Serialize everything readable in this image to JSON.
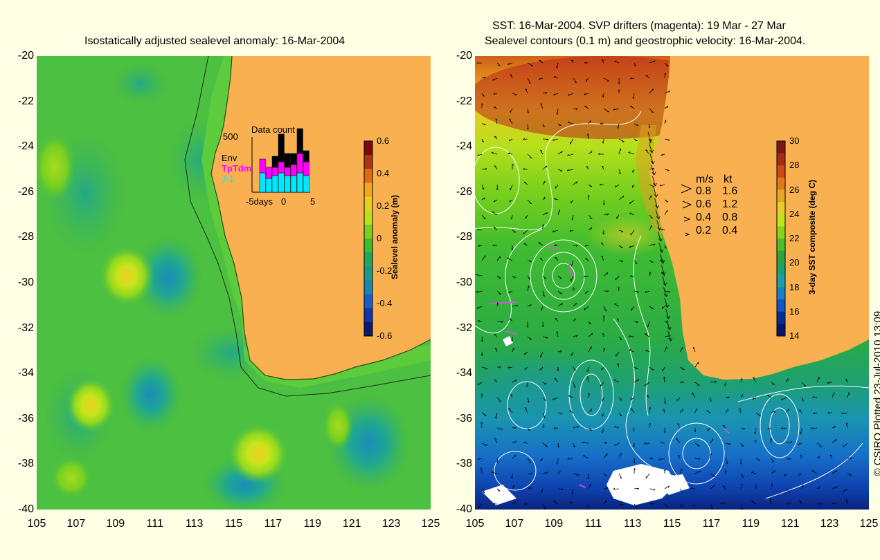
{
  "left": {
    "title": "Isostatically adjusted sealevel anomaly: 16-Mar-2004",
    "colorbar": {
      "label": "Sealevel anomaly (m)",
      "ticks": [
        "0.6",
        "0.4",
        "0.2",
        "0",
        "-0.2",
        "-0.4",
        "-0.6"
      ],
      "colors": [
        "#7b0a0a",
        "#b43214",
        "#e06a14",
        "#f6a51e",
        "#e8cf1e",
        "#b8e01c",
        "#78d01c",
        "#3cbc2c",
        "#20a858",
        "#1a9a86",
        "#1a84b0",
        "#165ec8",
        "#1236aa",
        "#0a1a6e"
      ]
    },
    "inset": {
      "title": "Data count",
      "ymax": "500",
      "legend": [
        {
          "name": "Env",
          "color": "#000000"
        },
        {
          "name": "TpTdm",
          "color": "#ff00ff"
        },
        {
          "name": "J-1",
          "color": "#00e8ff"
        }
      ],
      "xticks": [
        "-5days",
        "0",
        "5"
      ],
      "bars": [
        {
          "day": -5,
          "env": 0,
          "tp": 0,
          "j1": 0
        },
        {
          "day": -4,
          "env": 0,
          "tp": 0.25,
          "j1": 0.35
        },
        {
          "day": -3,
          "env": 0,
          "tp": 0.2,
          "j1": 0.25
        },
        {
          "day": -2,
          "env": 0.2,
          "tp": 0.15,
          "j1": 0.3
        },
        {
          "day": -1,
          "env": 0.5,
          "tp": 0.2,
          "j1": 0.35
        },
        {
          "day": 0,
          "env": 0.25,
          "tp": 0.15,
          "j1": 0.3
        },
        {
          "day": 1,
          "env": 0.2,
          "tp": 0.2,
          "j1": 0.3
        },
        {
          "day": 2,
          "env": 0.45,
          "tp": 0.35,
          "j1": 0.35
        },
        {
          "day": 3,
          "env": 0.2,
          "tp": 0.25,
          "j1": 0.3
        }
      ]
    }
  },
  "right": {
    "title1": "SST: 16-Mar-2004. SVP drifters (magenta): 19 Mar - 27 Mar",
    "title2": "Sealevel contours (0.1 m) and geostrophic velocity: 16-Mar-2004.",
    "colorbar": {
      "label": "3-day SST composite (deg C)",
      "ticks": [
        "30",
        "28",
        "26",
        "24",
        "22",
        "20",
        "18",
        "16",
        "14"
      ],
      "colors": [
        "#7a1a16",
        "#a52a18",
        "#cc4a14",
        "#e0781c",
        "#e8a624",
        "#e8cf28",
        "#c4e41c",
        "#88d41c",
        "#4cc02c",
        "#2ca43a",
        "#1ea070",
        "#1aa0a8",
        "#1680c8",
        "#1056c8",
        "#0a2c96",
        "#061664"
      ]
    },
    "speed_legend": {
      "header_ms": "m/s",
      "header_kt": "kt",
      "rows": [
        {
          "ms": "0.8",
          "kt": "1.6"
        },
        {
          "ms": "0.6",
          "kt": "1.2"
        },
        {
          "ms": "0.4",
          "kt": "0.8"
        },
        {
          "ms": "0.2",
          "kt": "0.4"
        }
      ]
    }
  },
  "axes": {
    "lat": [
      "-20",
      "-22",
      "-24",
      "-26",
      "-28",
      "-30",
      "-32",
      "-34",
      "-36",
      "-38",
      "-40"
    ],
    "lon": [
      "105",
      "107",
      "109",
      "111",
      "113",
      "115",
      "117",
      "119",
      "121",
      "123",
      "125"
    ]
  },
  "credit": "© CSIRO Plotted 23-Jul-2010 13:09",
  "colors": {
    "land": "#f8b050",
    "ocean_green": "#4cc040",
    "background": "#ffffe6"
  }
}
